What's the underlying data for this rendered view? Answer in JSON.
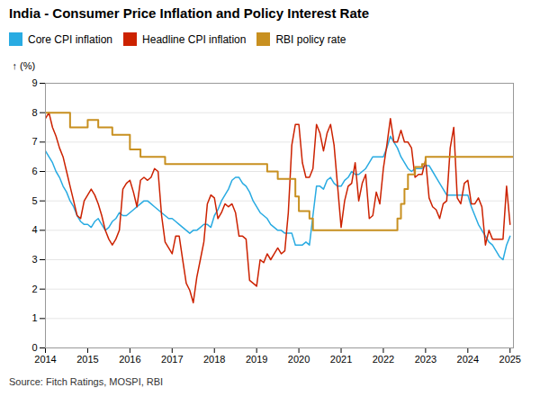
{
  "chart_data": {
    "type": "line",
    "title": "India - Consumer Price Inflation and Policy Interest Rate",
    "ylabel": "(%)",
    "source": "Source: Fitch Ratings, MOSPI, RBI",
    "xlim": [
      2014,
      2025.08
    ],
    "xticks": [
      2014,
      2015,
      2016,
      2017,
      2018,
      2019,
      2020,
      2021,
      2022,
      2023,
      2024,
      2025
    ],
    "ylim": [
      0,
      9
    ],
    "yticks": [
      0,
      1,
      2,
      3,
      4,
      5,
      6,
      7,
      8,
      9
    ],
    "grid": "y",
    "legend": "top",
    "series": [
      {
        "name": "Core CPI inflation",
        "color": "#29ABE2",
        "type": "line",
        "x": [
          2014.0,
          2014.083,
          2014.167,
          2014.25,
          2014.333,
          2014.417,
          2014.5,
          2014.583,
          2014.667,
          2014.75,
          2014.833,
          2014.917,
          2015.0,
          2015.083,
          2015.167,
          2015.25,
          2015.333,
          2015.417,
          2015.5,
          2015.583,
          2015.667,
          2015.75,
          2015.833,
          2015.917,
          2016.0,
          2016.083,
          2016.167,
          2016.25,
          2016.333,
          2016.417,
          2016.5,
          2016.583,
          2016.667,
          2016.75,
          2016.833,
          2016.917,
          2017.0,
          2017.083,
          2017.167,
          2017.25,
          2017.333,
          2017.417,
          2017.5,
          2017.583,
          2017.667,
          2017.75,
          2017.833,
          2017.917,
          2018.0,
          2018.083,
          2018.167,
          2018.25,
          2018.333,
          2018.417,
          2018.5,
          2018.583,
          2018.667,
          2018.75,
          2018.833,
          2018.917,
          2019.0,
          2019.083,
          2019.167,
          2019.25,
          2019.333,
          2019.417,
          2019.5,
          2019.583,
          2019.667,
          2019.75,
          2019.833,
          2019.917,
          2020.0,
          2020.083,
          2020.167,
          2020.25,
          2020.333,
          2020.417,
          2020.5,
          2020.583,
          2020.667,
          2020.75,
          2020.833,
          2020.917,
          2021.0,
          2021.083,
          2021.167,
          2021.25,
          2021.333,
          2021.417,
          2021.5,
          2021.583,
          2021.667,
          2021.75,
          2021.833,
          2021.917,
          2022.0,
          2022.083,
          2022.167,
          2022.25,
          2022.333,
          2022.417,
          2022.5,
          2022.583,
          2022.667,
          2022.75,
          2022.833,
          2022.917,
          2023.0,
          2023.083,
          2023.167,
          2023.25,
          2023.333,
          2023.417,
          2023.5,
          2023.583,
          2023.667,
          2023.75,
          2023.833,
          2023.917,
          2024.0,
          2024.083,
          2024.167,
          2024.25,
          2024.333,
          2024.417,
          2024.5,
          2024.583,
          2024.667,
          2024.75,
          2024.833,
          2024.917,
          2025.0
        ],
        "values": [
          6.7,
          6.5,
          6.3,
          6.0,
          5.8,
          5.5,
          5.3,
          5.0,
          4.8,
          4.5,
          4.3,
          4.2,
          4.2,
          4.1,
          4.3,
          4.4,
          4.2,
          4.0,
          4.1,
          4.3,
          4.4,
          4.6,
          4.5,
          4.5,
          4.6,
          4.7,
          4.8,
          4.9,
          5.0,
          5.0,
          4.9,
          4.8,
          4.7,
          4.6,
          4.5,
          4.4,
          4.4,
          4.3,
          4.2,
          4.1,
          4.0,
          3.9,
          4.0,
          4.0,
          4.1,
          4.2,
          4.2,
          4.1,
          4.5,
          4.7,
          5.0,
          5.2,
          5.4,
          5.7,
          5.8,
          5.8,
          5.6,
          5.5,
          5.3,
          5.0,
          4.8,
          4.6,
          4.5,
          4.4,
          4.2,
          4.1,
          4.0,
          4.0,
          3.9,
          3.9,
          3.9,
          3.5,
          3.5,
          3.5,
          3.6,
          3.5,
          4.5,
          5.5,
          5.5,
          5.4,
          5.7,
          5.8,
          5.6,
          5.5,
          5.5,
          5.7,
          5.8,
          6.0,
          5.9,
          5.9,
          6.0,
          6.1,
          6.3,
          6.5,
          6.5,
          6.5,
          6.5,
          6.8,
          7.2,
          7.0,
          6.8,
          6.5,
          6.3,
          6.1,
          6.0,
          6.1,
          6.1,
          6.1,
          6.2,
          6.2,
          6.0,
          5.8,
          5.6,
          5.4,
          5.2,
          5.2,
          5.2,
          5.2,
          5.2,
          5.2,
          5.2,
          4.8,
          4.5,
          4.2,
          4.0,
          3.8,
          3.6,
          3.5,
          3.3,
          3.1,
          3.0,
          3.5,
          3.8
        ]
      },
      {
        "name": "Headline CPI inflation",
        "color": "#CC2200",
        "type": "line",
        "x": [
          2014.0,
          2014.083,
          2014.167,
          2014.25,
          2014.333,
          2014.417,
          2014.5,
          2014.583,
          2014.667,
          2014.75,
          2014.833,
          2014.917,
          2015.0,
          2015.083,
          2015.167,
          2015.25,
          2015.333,
          2015.417,
          2015.5,
          2015.583,
          2015.667,
          2015.75,
          2015.833,
          2015.917,
          2016.0,
          2016.083,
          2016.167,
          2016.25,
          2016.333,
          2016.417,
          2016.5,
          2016.583,
          2016.667,
          2016.75,
          2016.833,
          2016.917,
          2017.0,
          2017.083,
          2017.167,
          2017.25,
          2017.333,
          2017.417,
          2017.5,
          2017.583,
          2017.667,
          2017.75,
          2017.833,
          2017.917,
          2018.0,
          2018.083,
          2018.167,
          2018.25,
          2018.333,
          2018.417,
          2018.5,
          2018.583,
          2018.667,
          2018.75,
          2018.833,
          2018.917,
          2019.0,
          2019.083,
          2019.167,
          2019.25,
          2019.333,
          2019.417,
          2019.5,
          2019.583,
          2019.667,
          2019.75,
          2019.833,
          2019.917,
          2020.0,
          2020.083,
          2020.167,
          2020.25,
          2020.333,
          2020.417,
          2020.5,
          2020.583,
          2020.667,
          2020.75,
          2020.833,
          2020.917,
          2021.0,
          2021.083,
          2021.167,
          2021.25,
          2021.333,
          2021.417,
          2021.5,
          2021.583,
          2021.667,
          2021.75,
          2021.833,
          2021.917,
          2022.0,
          2022.083,
          2022.167,
          2022.25,
          2022.333,
          2022.417,
          2022.5,
          2022.583,
          2022.667,
          2022.75,
          2022.833,
          2022.917,
          2023.0,
          2023.083,
          2023.167,
          2023.25,
          2023.333,
          2023.417,
          2023.5,
          2023.583,
          2023.667,
          2023.75,
          2023.833,
          2023.917,
          2024.0,
          2024.083,
          2024.167,
          2024.25,
          2024.333,
          2024.417,
          2024.5,
          2024.583,
          2024.667,
          2024.75,
          2024.833,
          2024.917,
          2025.0
        ],
        "values": [
          7.8,
          8.0,
          7.5,
          7.2,
          6.8,
          6.5,
          6.0,
          5.5,
          5.0,
          4.5,
          4.4,
          5.0,
          5.2,
          5.4,
          5.2,
          4.9,
          4.5,
          4.0,
          3.7,
          3.5,
          3.7,
          4.0,
          5.4,
          5.6,
          5.7,
          5.3,
          4.8,
          5.7,
          5.8,
          5.7,
          5.8,
          6.1,
          6.0,
          4.5,
          3.6,
          3.4,
          3.2,
          3.8,
          3.8,
          2.99,
          2.2,
          1.96,
          1.54,
          2.4,
          3.0,
          3.6,
          4.9,
          5.2,
          5.1,
          4.4,
          4.6,
          4.9,
          4.8,
          4.9,
          4.6,
          3.8,
          3.8,
          3.7,
          2.3,
          2.2,
          2.1,
          3.0,
          2.9,
          3.2,
          3.0,
          3.2,
          3.4,
          3.2,
          3.3,
          4.6,
          6.9,
          7.6,
          7.6,
          6.3,
          5.8,
          5.8,
          6.1,
          7.6,
          7.3,
          6.7,
          7.3,
          7.6,
          6.9,
          5.5,
          4.1,
          5.0,
          5.5,
          5.6,
          6.3,
          5.0,
          5.6,
          5.9,
          4.4,
          4.5,
          5.3,
          4.9,
          6.1,
          6.9,
          7.8,
          7.0,
          7.0,
          7.4,
          7.0,
          7.0,
          6.8,
          5.8,
          5.9,
          5.9,
          6.4,
          5.1,
          4.8,
          4.7,
          4.4,
          4.9,
          5.0,
          6.8,
          7.5,
          5.1,
          4.9,
          5.6,
          5.7,
          4.9,
          4.9,
          5.1,
          4.8,
          3.5,
          4.0,
          3.7,
          3.7,
          3.7,
          3.7,
          5.5,
          4.2
        ]
      },
      {
        "name": "RBI policy rate",
        "color": "#C89020",
        "type": "step",
        "x": [
          2014.0,
          2014.25,
          2014.583,
          2015.0,
          2015.25,
          2015.583,
          2016.0,
          2016.25,
          2016.5,
          2016.833,
          2017.0,
          2019.0,
          2019.25,
          2019.5,
          2019.917,
          2020.0,
          2020.25,
          2020.333,
          2020.5,
          2022.0,
          2022.333,
          2022.417,
          2022.5,
          2022.583,
          2022.75,
          2022.917,
          2023.0,
          2023.083,
          2023.167,
          2024.0,
          2024.833,
          2024.917,
          2025.08
        ],
        "values": [
          8.0,
          8.0,
          7.5,
          7.75,
          7.5,
          7.25,
          6.75,
          6.5,
          6.5,
          6.25,
          6.25,
          6.25,
          6.0,
          5.75,
          5.15,
          4.65,
          4.4,
          4.0,
          4.0,
          4.0,
          4.4,
          4.9,
          5.4,
          5.9,
          6.15,
          6.25,
          6.5,
          6.5,
          6.5,
          6.5,
          6.5,
          6.5,
          6.5
        ]
      }
    ]
  }
}
